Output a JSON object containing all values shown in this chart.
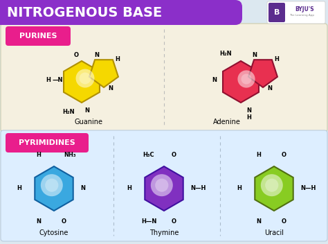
{
  "title": "NITROGENOUS BASE",
  "title_bg": "#8B2FC9",
  "title_color": "#ffffff",
  "bg_color": "#dce8f0",
  "purines_label": "PURINES",
  "pyrimidines_label": "PYRIMIDINES",
  "label_bg": "#e91e8c",
  "label_color": "#ffffff",
  "panel_bg": "#f5f0e0",
  "panel_bg2": "#ddeeff",
  "guanine_color": "#f5d800",
  "guanine_edge": "#b09000",
  "adenine_color": "#e83050",
  "adenine_edge": "#901030",
  "cytosine_color": "#3aa8e0",
  "cytosine_edge": "#1060a0",
  "thymine_color": "#8030c0",
  "thymine_edge": "#4010a0",
  "uracil_color": "#88cc22",
  "uracil_edge": "#507010",
  "byju_logo_color": "#5b2d8e"
}
